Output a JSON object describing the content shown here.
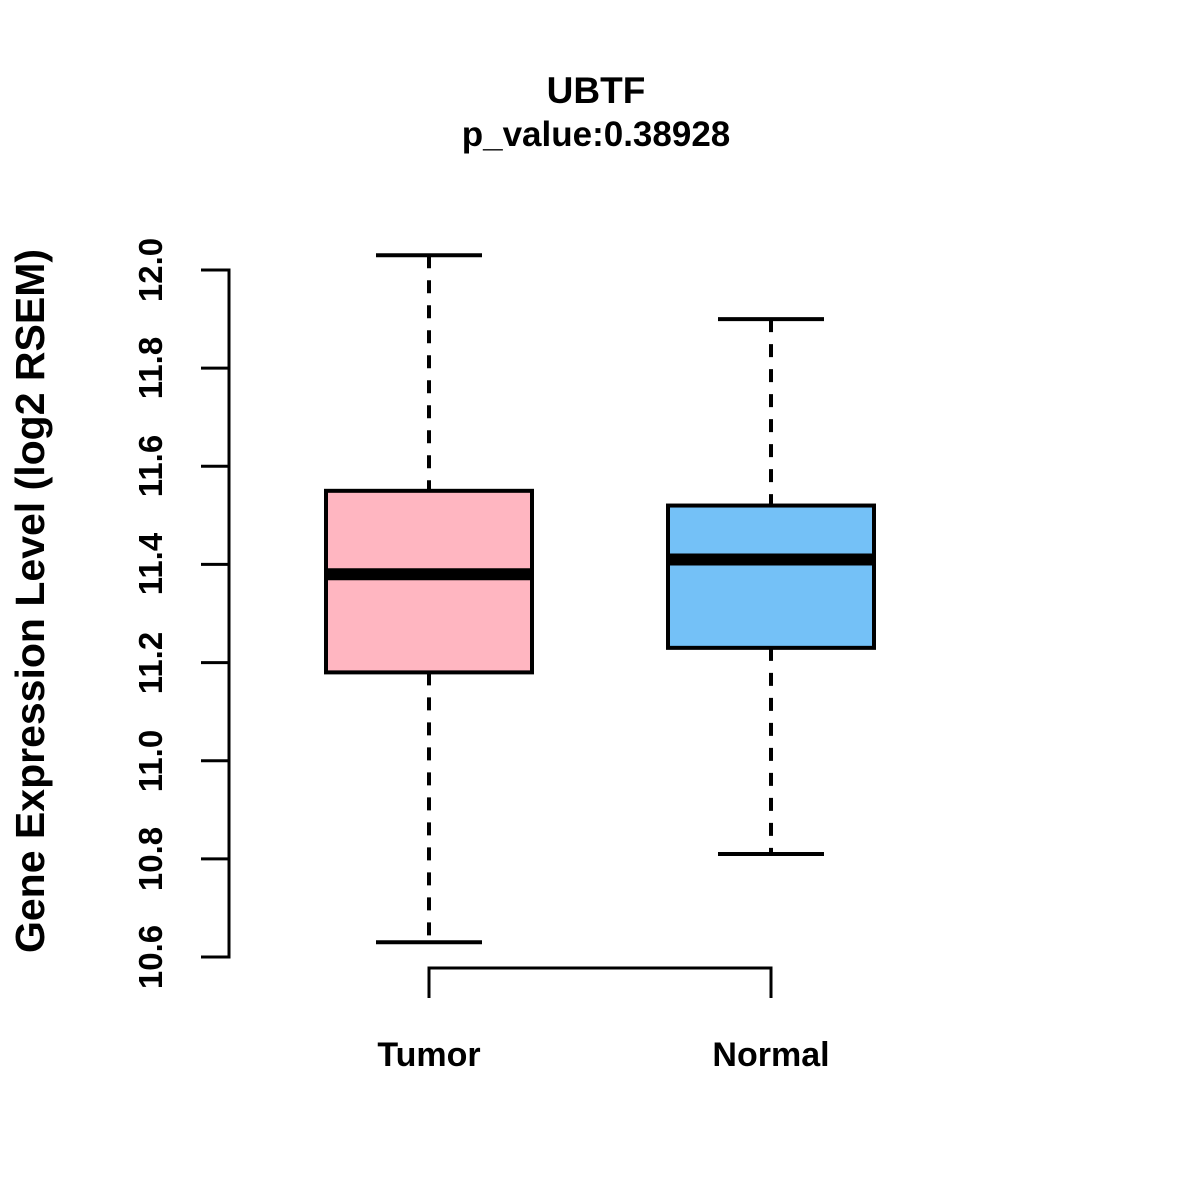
{
  "figure": {
    "title": "UBTF",
    "subtitle": "p_value:0.38928",
    "ylabel": "Gene Expression Level (log2 RSEM)"
  },
  "chart_data": {
    "type": "boxplot",
    "title": "UBTF",
    "subtitle": "p_value:0.38928",
    "gene": "UBTF",
    "p_value": 0.38928,
    "ylabel": "Gene Expression Level (log2 RSEM)",
    "xlabel": "",
    "categories": [
      "Tumor",
      "Normal"
    ],
    "ylim": [
      10.6,
      12.0
    ],
    "yticks": [
      10.6,
      10.8,
      11.0,
      11.2,
      11.4,
      11.6,
      11.8,
      12.0
    ],
    "grid": false,
    "legend": false,
    "series": [
      {
        "name": "Tumor",
        "whisker_low": 10.63,
        "q1": 11.18,
        "median": 11.38,
        "q3": 11.55,
        "whisker_high": 12.03,
        "fill_color": "#FFB6C1"
      },
      {
        "name": "Normal",
        "whisker_low": 10.81,
        "q1": 11.23,
        "median": 11.41,
        "q3": 11.52,
        "whisker_high": 11.9,
        "fill_color": "#74C1F7"
      }
    ]
  },
  "colors": {
    "stroke": "#000000",
    "background": "#FFFFFF",
    "tumor_fill": "#FFB6C1",
    "normal_fill": "#74C1F7"
  }
}
